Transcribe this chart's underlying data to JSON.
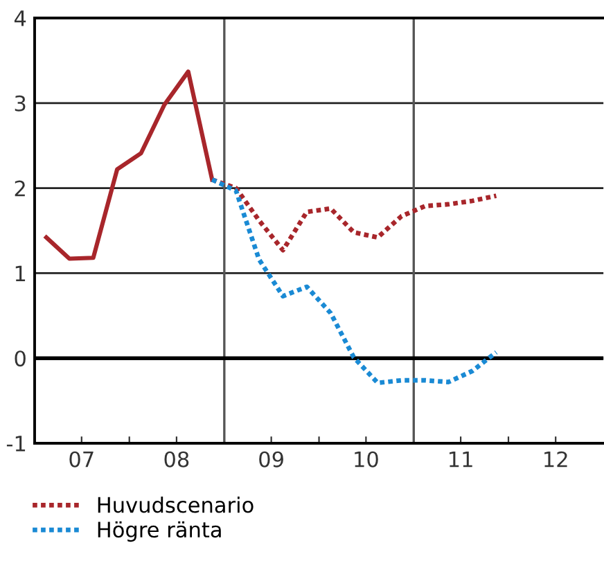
{
  "chart_data": {
    "type": "line",
    "xlim": [
      "2007-01-01",
      "2013-01-01"
    ],
    "ylim": [
      -1,
      4
    ],
    "xticks": [
      {
        "value": "2007-07-01",
        "label": "07"
      },
      {
        "value": "2008-01-01",
        "label": null
      },
      {
        "value": "2008-07-01",
        "label": "08"
      },
      {
        "value": "2009-07-01",
        "label": "09"
      },
      {
        "value": "2010-01-01",
        "label": null
      },
      {
        "value": "2010-07-01",
        "label": "10"
      },
      {
        "value": "2011-07-01",
        "label": "11"
      },
      {
        "value": "2012-01-01",
        "label": null
      },
      {
        "value": "2012-07-01",
        "label": "12"
      }
    ],
    "yticks": [
      -1,
      0,
      1,
      2,
      3,
      4
    ],
    "grid": "y",
    "legend": "bottom",
    "ref_lines": [
      {
        "axis": "x",
        "value": "2009-01-01",
        "label": null,
        "color": "#555555"
      },
      {
        "axis": "x",
        "value": "2011-01-01",
        "label": null,
        "color": "#555555"
      },
      {
        "axis": "y",
        "value": 0,
        "label": null,
        "color": "#000000"
      }
    ],
    "series": [
      {
        "color": "#a8262b",
        "line_style": "solid",
        "x": [
          "2007-02-15",
          "2007-05-15",
          "2007-08-15",
          "2007-11-15",
          "2008-02-15",
          "2008-05-15",
          "2008-08-15",
          "2008-11-15"
        ],
        "values": [
          1.42,
          1.17,
          1.18,
          2.22,
          2.41,
          2.98,
          3.37,
          2.1
        ]
      },
      {
        "name": "Huvudscenario",
        "color": "#a8262b",
        "line_style": "dotted",
        "x": [
          "2008-11-15",
          "2009-02-15",
          "2009-05-15",
          "2009-08-15",
          "2009-11-15",
          "2010-02-15",
          "2010-05-15",
          "2010-08-15",
          "2010-11-15",
          "2011-02-15",
          "2011-05-15",
          "2011-08-15",
          "2011-11-15"
        ],
        "values": [
          2.1,
          2.0,
          1.62,
          1.27,
          1.72,
          1.76,
          1.48,
          1.42,
          1.67,
          1.79,
          1.81,
          1.85,
          1.91
        ]
      },
      {
        "name": "Högre ränta",
        "color": "#1a8ad4",
        "line_style": "dotted",
        "x": [
          "2008-11-15",
          "2009-02-15",
          "2009-05-15",
          "2009-08-15",
          "2009-11-15",
          "2010-02-15",
          "2010-05-15",
          "2010-08-15",
          "2010-11-15",
          "2011-02-15",
          "2011-05-15",
          "2011-08-15",
          "2011-11-15"
        ],
        "values": [
          2.1,
          1.97,
          1.16,
          0.73,
          0.84,
          0.53,
          0.01,
          -0.29,
          -0.26,
          -0.26,
          -0.28,
          -0.15,
          0.07
        ]
      }
    ]
  }
}
